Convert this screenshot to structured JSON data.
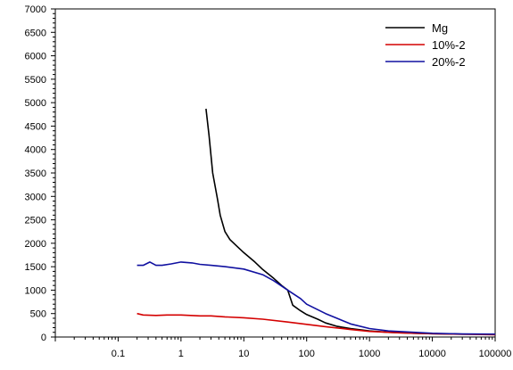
{
  "chart_data": {
    "type": "line",
    "title": "",
    "xlabel": "",
    "ylabel": "",
    "x_scale": "log",
    "xlim": [
      0.01,
      100000
    ],
    "ylim": [
      0,
      7000
    ],
    "x_ticks": [
      {
        "value": 0.1,
        "label": "0.1"
      },
      {
        "value": 1,
        "label": "1"
      },
      {
        "value": 10,
        "label": "10"
      },
      {
        "value": 100,
        "label": "100"
      },
      {
        "value": 1000,
        "label": "1000"
      },
      {
        "value": 10000,
        "label": "10000"
      },
      {
        "value": 100000,
        "label": "100000"
      }
    ],
    "y_ticks": [
      {
        "value": 0,
        "label": "0"
      },
      {
        "value": 500,
        "label": "500"
      },
      {
        "value": 1000,
        "label": "1000"
      },
      {
        "value": 1500,
        "label": "1500"
      },
      {
        "value": 2000,
        "label": "2000"
      },
      {
        "value": 2500,
        "label": "2500"
      },
      {
        "value": 3000,
        "label": "3000"
      },
      {
        "value": 3500,
        "label": "3500"
      },
      {
        "value": 4000,
        "label": "4000"
      },
      {
        "value": 4500,
        "label": "4500"
      },
      {
        "value": 5000,
        "label": "5000"
      },
      {
        "value": 5500,
        "label": "5500"
      },
      {
        "value": 6000,
        "label": "6000"
      },
      {
        "value": 6500,
        "label": "6500"
      },
      {
        "value": 7000,
        "label": "7000"
      }
    ],
    "grid": false,
    "legend_position": "top-right",
    "series": [
      {
        "name": "Mg",
        "color": "#000000",
        "points": [
          [
            2.5,
            4870
          ],
          [
            2.8,
            4300
          ],
          [
            3.2,
            3500
          ],
          [
            3.8,
            2950
          ],
          [
            4.2,
            2600
          ],
          [
            5,
            2250
          ],
          [
            6,
            2080
          ],
          [
            8,
            1920
          ],
          [
            10,
            1800
          ],
          [
            15,
            1600
          ],
          [
            20,
            1440
          ],
          [
            30,
            1250
          ],
          [
            40,
            1100
          ],
          [
            50,
            1000
          ],
          [
            60,
            680
          ],
          [
            80,
            560
          ],
          [
            100,
            480
          ],
          [
            150,
            380
          ],
          [
            200,
            300
          ],
          [
            300,
            230
          ],
          [
            500,
            180
          ],
          [
            1000,
            130
          ],
          [
            2000,
            100
          ],
          [
            5000,
            80
          ],
          [
            10000,
            70
          ],
          [
            30000,
            60
          ],
          [
            100000,
            60
          ]
        ]
      },
      {
        "name": "10%-2",
        "color": "#d40000",
        "points": [
          [
            0.2,
            500
          ],
          [
            0.25,
            470
          ],
          [
            0.4,
            460
          ],
          [
            0.6,
            470
          ],
          [
            1,
            470
          ],
          [
            2,
            450
          ],
          [
            3,
            450
          ],
          [
            5,
            430
          ],
          [
            10,
            410
          ],
          [
            20,
            380
          ],
          [
            50,
            320
          ],
          [
            100,
            270
          ],
          [
            200,
            220
          ],
          [
            500,
            160
          ],
          [
            1000,
            120
          ],
          [
            3000,
            90
          ],
          [
            10000,
            70
          ],
          [
            30000,
            60
          ],
          [
            100000,
            50
          ]
        ]
      },
      {
        "name": "20%-2",
        "color": "#1010a0",
        "points": [
          [
            0.2,
            1530
          ],
          [
            0.25,
            1530
          ],
          [
            0.32,
            1600
          ],
          [
            0.4,
            1530
          ],
          [
            0.5,
            1530
          ],
          [
            0.7,
            1560
          ],
          [
            1,
            1600
          ],
          [
            1.5,
            1580
          ],
          [
            2,
            1550
          ],
          [
            3,
            1530
          ],
          [
            5,
            1500
          ],
          [
            10,
            1450
          ],
          [
            20,
            1330
          ],
          [
            30,
            1200
          ],
          [
            50,
            1000
          ],
          [
            80,
            820
          ],
          [
            100,
            700
          ],
          [
            200,
            500
          ],
          [
            500,
            280
          ],
          [
            1000,
            180
          ],
          [
            2000,
            130
          ],
          [
            5000,
            100
          ],
          [
            10000,
            80
          ],
          [
            30000,
            65
          ],
          [
            100000,
            60
          ]
        ]
      }
    ]
  }
}
